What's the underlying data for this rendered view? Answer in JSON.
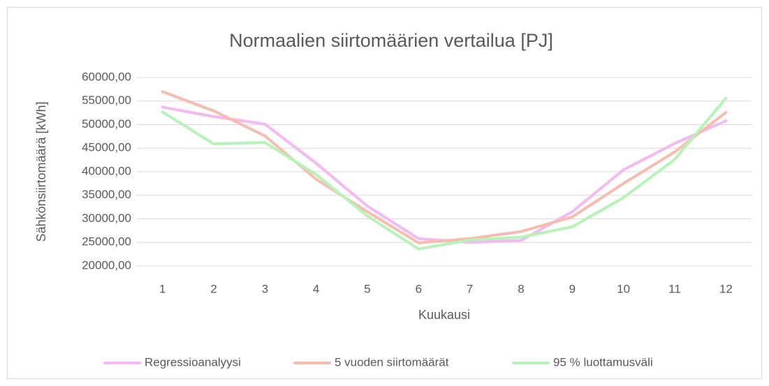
{
  "chart_data": {
    "type": "line",
    "title": "Normaalien siirtomäärien vertailua [PJ]",
    "x_label": "Kuukausi",
    "y_label": "Sähkönsiirtomäärä [kWh]",
    "categories": [
      "1",
      "2",
      "3",
      "4",
      "5",
      "6",
      "7",
      "8",
      "9",
      "10",
      "11",
      "12"
    ],
    "series": [
      {
        "name": "Regressioanalyysi",
        "color": "#f5b8f3",
        "values": [
          53700,
          51700,
          50100,
          41800,
          32700,
          25800,
          25000,
          25400,
          31500,
          40400,
          46000,
          50800
        ]
      },
      {
        "name": "5 vuoden siirtomäärät",
        "color": "#f8bcae",
        "values": [
          57000,
          52900,
          47600,
          38400,
          31500,
          24900,
          25800,
          27300,
          30400,
          37500,
          44200,
          52600
        ]
      },
      {
        "name": "95 % luottamusväli",
        "color": "#b6f3b6",
        "values": [
          52700,
          45900,
          46200,
          39400,
          30600,
          23600,
          25500,
          26100,
          28300,
          34500,
          42600,
          55600
        ]
      }
    ],
    "ylim": [
      20000,
      60000
    ],
    "yticks": [
      {
        "value": 20000,
        "label": "20000,00"
      },
      {
        "value": 25000,
        "label": "25000,00"
      },
      {
        "value": 30000,
        "label": "30000,00"
      },
      {
        "value": 35000,
        "label": "35000,00"
      },
      {
        "value": 40000,
        "label": "40000,00"
      },
      {
        "value": 45000,
        "label": "45000,00"
      },
      {
        "value": 50000,
        "label": "50000,00"
      },
      {
        "value": 55000,
        "label": "55000,00"
      },
      {
        "value": 60000,
        "label": "60000,00"
      }
    ],
    "grid": true,
    "legend": "bottom"
  }
}
